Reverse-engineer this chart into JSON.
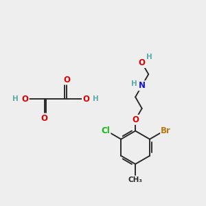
{
  "bg_color": "#eeeeee",
  "bond_color": "#2a2a2a",
  "bond_width": 1.4,
  "atom_colors": {
    "C": "#2a2a2a",
    "H": "#5aacac",
    "O": "#dd0000",
    "N": "#1111ee",
    "Cl": "#11bb11",
    "Br": "#bb7711",
    "CH3": "#2a2a2a"
  },
  "font_size": 8.5,
  "small_font": 7.5
}
